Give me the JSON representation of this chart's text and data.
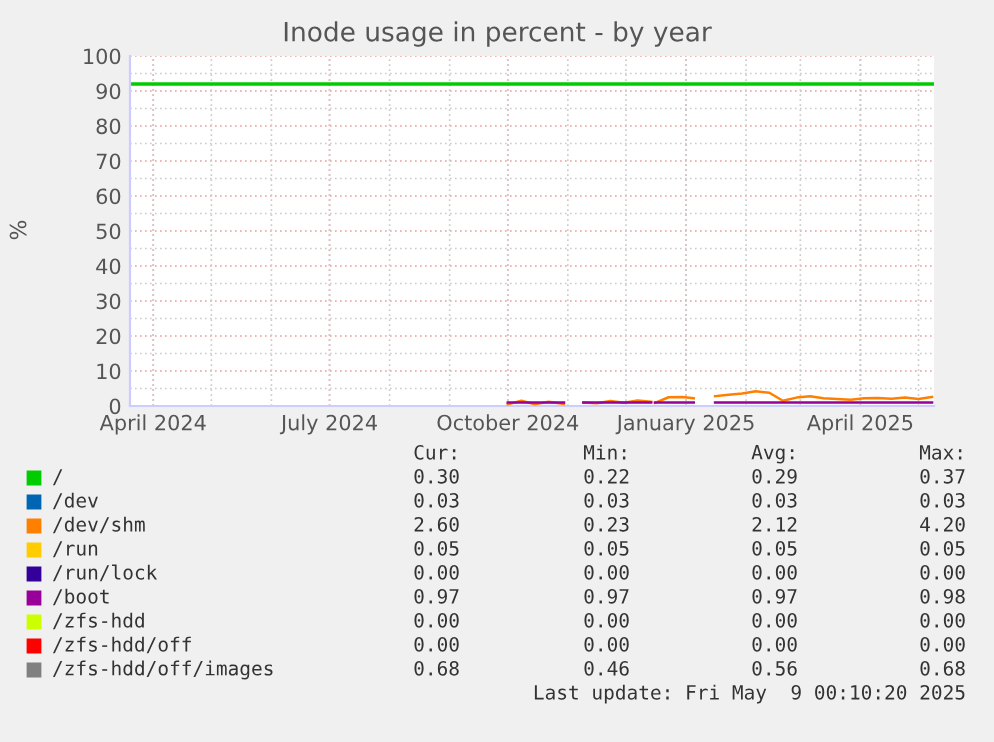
{
  "chart_data": {
    "type": "line",
    "title": "Inode usage in percent - by year",
    "ylabel": "%",
    "x": [
      "2024-10-01",
      "2024-10-08",
      "2024-10-15",
      "2024-10-22",
      "2024-10-30",
      "2024-11-04",
      "2024-11-09",
      "2024-11-16",
      "2024-11-23",
      "2024-11-30",
      "2024-12-07",
      "2024-12-14",
      "2024-12-15",
      "2024-12-16",
      "2024-12-23",
      "2024-12-30",
      "2025-01-05",
      "2025-01-10",
      "2025-01-16",
      "2025-01-23",
      "2025-01-30",
      "2025-02-06",
      "2025-02-13",
      "2025-02-20",
      "2025-02-27",
      "2025-03-06",
      "2025-03-13",
      "2025-03-20",
      "2025-03-27",
      "2025-04-03",
      "2025-04-10",
      "2025-04-17",
      "2025-04-24",
      "2025-05-01",
      "2025-05-08"
    ],
    "series": [
      {
        "name": "/",
        "color": "#00cc00",
        "values": [
          null,
          null,
          null,
          null,
          null,
          null,
          null,
          null,
          null,
          null,
          null,
          null,
          null,
          null,
          null,
          null,
          null,
          null,
          null,
          null,
          null,
          null,
          null,
          null,
          null,
          null,
          null,
          null,
          null,
          null,
          null,
          null,
          null,
          null,
          null
        ]
      },
      {
        "name": "/dev",
        "color": "#0066b3",
        "values": [
          null,
          null,
          null,
          null,
          null,
          null,
          null,
          null,
          null,
          null,
          null,
          null,
          null,
          null,
          null,
          null,
          null,
          null,
          null,
          null,
          null,
          null,
          null,
          null,
          null,
          null,
          null,
          null,
          null,
          null,
          null,
          null,
          null,
          null,
          null
        ]
      },
      {
        "name": "/dev/shm",
        "color": "#ff8000",
        "values": [
          0.5,
          1.5,
          0.5,
          1.2,
          0.6,
          null,
          1.0,
          0.8,
          1.4,
          0.9,
          1.6,
          1.2,
          null,
          0.9,
          2.5,
          2.6,
          2.2,
          null,
          2.8,
          3.2,
          3.6,
          4.2,
          3.8,
          1.5,
          2.4,
          2.8,
          2.2,
          2.0,
          1.8,
          2.2,
          2.3,
          2.1,
          2.4,
          2.0,
          2.6
        ]
      },
      {
        "name": "/run",
        "color": "#ffcc00",
        "values": [
          null,
          null,
          null,
          null,
          null,
          null,
          null,
          null,
          null,
          null,
          null,
          null,
          null,
          null,
          null,
          null,
          null,
          null,
          null,
          null,
          null,
          null,
          null,
          null,
          null,
          null,
          null,
          null,
          null,
          null,
          null,
          null,
          null,
          null,
          null
        ]
      },
      {
        "name": "/run/lock",
        "color": "#330099",
        "values": [
          null,
          null,
          null,
          null,
          null,
          null,
          null,
          null,
          null,
          null,
          null,
          null,
          null,
          null,
          null,
          null,
          null,
          null,
          null,
          null,
          null,
          null,
          null,
          null,
          null,
          null,
          null,
          null,
          null,
          null,
          null,
          null,
          null,
          null,
          null
        ]
      },
      {
        "name": "/boot",
        "color": "#990099",
        "values": [
          1,
          1,
          1,
          1,
          1,
          null,
          1,
          1,
          1,
          1,
          1,
          1,
          null,
          1,
          1,
          1,
          1,
          null,
          1,
          1,
          1,
          1,
          1,
          1,
          1,
          1,
          1,
          1,
          1,
          1,
          1,
          1,
          1,
          1,
          1
        ]
      },
      {
        "name": "/zfs-hdd",
        "color": "#ccff00",
        "values": [
          null,
          null,
          null,
          null,
          null,
          null,
          null,
          null,
          null,
          null,
          null,
          null,
          null,
          null,
          null,
          null,
          null,
          null,
          null,
          null,
          null,
          null,
          null,
          null,
          null,
          null,
          null,
          null,
          null,
          null,
          null,
          null,
          null,
          null,
          null
        ]
      },
      {
        "name": "/zfs-hdd/off",
        "color": "#ff0000",
        "values": [
          null,
          null,
          null,
          null,
          null,
          null,
          null,
          null,
          null,
          null,
          null,
          null,
          null,
          null,
          null,
          null,
          null,
          null,
          null,
          null,
          null,
          null,
          null,
          null,
          null,
          null,
          null,
          null,
          null,
          null,
          null,
          null,
          null,
          null,
          null
        ]
      },
      {
        "name": "/zfs-hdd/off/images",
        "color": "#808080",
        "values": [
          null,
          null,
          null,
          null,
          null,
          null,
          null,
          null,
          null,
          null,
          null,
          null,
          null,
          null,
          null,
          null,
          null,
          null,
          null,
          null,
          null,
          null,
          null,
          null,
          null,
          null,
          null,
          null,
          null,
          null,
          null,
          null,
          null,
          null,
          null
        ]
      }
    ],
    "ref_lines": [
      {
        "axis": "y",
        "value": 92,
        "color": "#00cc00"
      }
    ],
    "xlim": [
      "2024-03-20",
      "2025-05-09"
    ],
    "xticks": [
      {
        "value": "2024-04-01",
        "label": "April 2024"
      },
      {
        "value": "2024-07-01",
        "label": "July 2024"
      },
      {
        "value": "2024-10-01",
        "label": "October 2024"
      },
      {
        "value": "2025-01-01",
        "label": "January 2025"
      },
      {
        "value": "2025-04-01",
        "label": "April 2025"
      }
    ],
    "ylim": [
      0,
      100
    ],
    "yticks": [
      0,
      10,
      20,
      30,
      40,
      50,
      60,
      70,
      80,
      90,
      100
    ],
    "grid": true,
    "legend": "bottom",
    "marker": "none",
    "line_style": "solid",
    "annotations": [
      "Cur:",
      "Min:",
      "Avg:",
      "Max:",
      "0.30",
      "0.22",
      "0.29",
      "0.37",
      "0.03",
      "0.03",
      "0.03",
      "0.03",
      "2.60",
      "0.23",
      "2.12",
      "4.20",
      "0.05",
      "0.05",
      "0.05",
      "0.05",
      "0.00",
      "0.00",
      "0.00",
      "0.00",
      "0.97",
      "0.97",
      "0.97",
      "0.98",
      "0.00",
      "0.00",
      "0.00",
      "0.00",
      "0.00",
      "0.00",
      "0.00",
      "0.00",
      "0.68",
      "0.46",
      "0.56",
      "0.68",
      "Last update: Fri May  9 00:10:20 2025"
    ]
  }
}
